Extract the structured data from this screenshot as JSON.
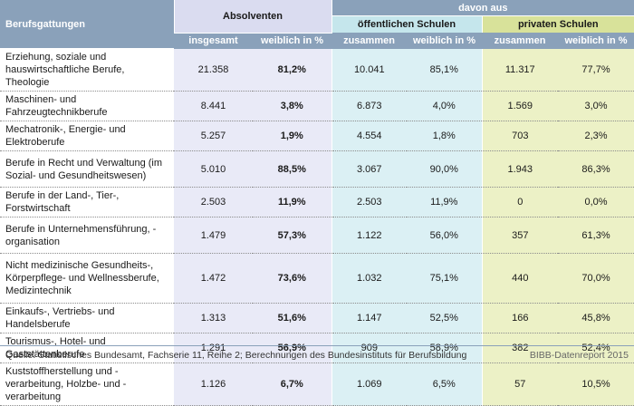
{
  "header": {
    "col_berufsgattungen": "Berufsgattungen",
    "absolventen": "Absolventen",
    "davon_aus": "davon aus",
    "oeffentliche_schulen": "öffentlichen Schulen",
    "private_schulen": "privaten Schulen",
    "insgesamt": "insgesamt",
    "weiblich_in_pct_1": "weiblich in %",
    "zusammen_1": "zusammen",
    "weiblich_in_pct_2": "weiblich in %",
    "zusammen_2": "zusammen",
    "weiblich_in_pct_3": "weiblich in %"
  },
  "rows": [
    {
      "name": "Erziehung, soziale und hauswirtschaftliche Berufe, Theologie",
      "insgesamt": "21.358",
      "weiblich": "81,2%",
      "oeff_zusammen": "10.041",
      "oeff_weiblich": "85,1%",
      "priv_zusammen": "11.317",
      "priv_weiblich": "77,7%"
    },
    {
      "name": "Maschinen- und Fahrzeugtechnikberufe",
      "insgesamt": "8.441",
      "weiblich": "3,8%",
      "oeff_zusammen": "6.873",
      "oeff_weiblich": "4,0%",
      "priv_zusammen": "1.569",
      "priv_weiblich": "3,0%"
    },
    {
      "name": "Mechatronik-, Energie- und Elektroberufe",
      "insgesamt": "5.257",
      "weiblich": "1,9%",
      "oeff_zusammen": "4.554",
      "oeff_weiblich": "1,8%",
      "priv_zusammen": "703",
      "priv_weiblich": "2,3%"
    },
    {
      "name": "Berufe in Recht und Verwaltung (im Sozial- und Gesundheitswesen)",
      "insgesamt": "5.010",
      "weiblich": "88,5%",
      "oeff_zusammen": "3.067",
      "oeff_weiblich": "90,0%",
      "priv_zusammen": "1.943",
      "priv_weiblich": "86,3%"
    },
    {
      "name": "Berufe in der Land-, Tier-, Forstwirtschaft",
      "insgesamt": "2.503",
      "weiblich": "11,9%",
      "oeff_zusammen": "2.503",
      "oeff_weiblich": "11,9%",
      "priv_zusammen": "0",
      "priv_weiblich": "0,0%"
    },
    {
      "name": "Berufe in Unternehmensführung, -organisation",
      "insgesamt": "1.479",
      "weiblich": "57,3%",
      "oeff_zusammen": "1.122",
      "oeff_weiblich": "56,0%",
      "priv_zusammen": "357",
      "priv_weiblich": "61,3%"
    },
    {
      "name": "Nicht medizinische Gesundheits-, Körperpflege- und Wellnessberufe, Medizintechnik",
      "insgesamt": "1.472",
      "weiblich": "73,6%",
      "oeff_zusammen": "1.032",
      "oeff_weiblich": "75,1%",
      "priv_zusammen": "440",
      "priv_weiblich": "70,0%"
    },
    {
      "name": "Einkaufs-, Vertriebs- und Handelsberufe",
      "insgesamt": "1.313",
      "weiblich": "51,6%",
      "oeff_zusammen": "1.147",
      "oeff_weiblich": "52,5%",
      "priv_zusammen": "166",
      "priv_weiblich": "45,8%"
    },
    {
      "name": "Tourismus-, Hotel- und Gaststättenberufe",
      "insgesamt": "1.291",
      "weiblich": "56,9%",
      "oeff_zusammen": "909",
      "oeff_weiblich": "58,9%",
      "priv_zusammen": "382",
      "priv_weiblich": "52,4%"
    },
    {
      "name": "Kuststoffherstellung und -verarbeitung, Holzbe- und -verarbeitung",
      "insgesamt": "1.126",
      "weiblich": "6,7%",
      "oeff_zusammen": "1.069",
      "oeff_weiblich": "6,5%",
      "priv_zusammen": "57",
      "priv_weiblich": "10,5%"
    }
  ],
  "footer": {
    "source": "Quelle: Statistisches Bundesamt, Fachserie 11, Reihe 2; Berechnungen des Bundesinstituts für Berufsbildung",
    "brand": "BIBB-Datenreport 2015"
  },
  "colors": {
    "header_blue": "#8aa1ba",
    "absolventen_band": "#e9eaf7",
    "oeffentliche_band": "#dbf0f4",
    "private_band": "#ecf1c6"
  }
}
